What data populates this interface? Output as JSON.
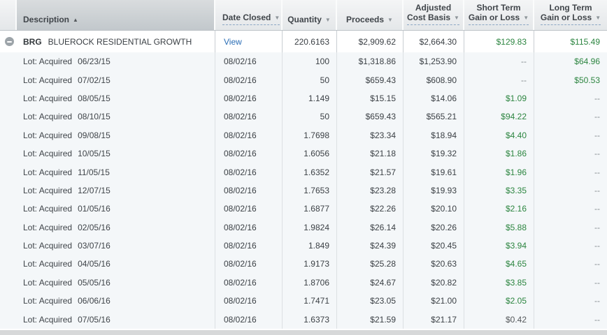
{
  "colors": {
    "gain_green": "#2c8540",
    "link_blue": "#2a6db5",
    "neutral_gray": "#55595c",
    "empty_dash_gray": "#868c91"
  },
  "table": {
    "columns": {
      "description": {
        "label": "Description",
        "sort_icon": "▲"
      },
      "date_closed": {
        "label": "Date Closed",
        "caret": "▼"
      },
      "quantity": {
        "label": "Quantity",
        "caret": "▼"
      },
      "proceeds": {
        "label": "Proceeds",
        "caret": "▼"
      },
      "adjusted_cost_basis": {
        "line1": "Adjusted",
        "line2": "Cost Basis",
        "caret": "▼"
      },
      "short_term": {
        "line1": "Short Term",
        "line2": "Gain or Loss",
        "caret": "▼"
      },
      "long_term": {
        "line1": "Long Term",
        "line2": "Gain or Loss",
        "caret": "▼"
      }
    },
    "summary": {
      "symbol": "BRG",
      "name": "BLUEROCK RESIDENTIAL GROWTH",
      "date_closed_link": "View",
      "quantity": "220.6163",
      "proceeds": "$2,909.62",
      "adjusted_cost_basis": "$2,664.30",
      "short_term": {
        "text": "$129.83",
        "tone": "gain"
      },
      "long_term": {
        "text": "$115.49",
        "tone": "gain"
      }
    },
    "lots": [
      {
        "label": "Lot: Acquired",
        "acquired": "06/23/15",
        "date_closed": "08/02/16",
        "quantity": "100",
        "proceeds": "$1,318.86",
        "adjusted_cost_basis": "$1,253.90",
        "short_term": {
          "text": "--",
          "tone": "empty"
        },
        "long_term": {
          "text": "$64.96",
          "tone": "gain"
        }
      },
      {
        "label": "Lot: Acquired",
        "acquired": "07/02/15",
        "date_closed": "08/02/16",
        "quantity": "50",
        "proceeds": "$659.43",
        "adjusted_cost_basis": "$608.90",
        "short_term": {
          "text": "--",
          "tone": "empty"
        },
        "long_term": {
          "text": "$50.53",
          "tone": "gain"
        }
      },
      {
        "label": "Lot: Acquired",
        "acquired": "08/05/15",
        "date_closed": "08/02/16",
        "quantity": "1.149",
        "proceeds": "$15.15",
        "adjusted_cost_basis": "$14.06",
        "short_term": {
          "text": "$1.09",
          "tone": "gain"
        },
        "long_term": {
          "text": "--",
          "tone": "empty"
        }
      },
      {
        "label": "Lot: Acquired",
        "acquired": "08/10/15",
        "date_closed": "08/02/16",
        "quantity": "50",
        "proceeds": "$659.43",
        "adjusted_cost_basis": "$565.21",
        "short_term": {
          "text": "$94.22",
          "tone": "gain"
        },
        "long_term": {
          "text": "--",
          "tone": "empty"
        }
      },
      {
        "label": "Lot: Acquired",
        "acquired": "09/08/15",
        "date_closed": "08/02/16",
        "quantity": "1.7698",
        "proceeds": "$23.34",
        "adjusted_cost_basis": "$18.94",
        "short_term": {
          "text": "$4.40",
          "tone": "gain"
        },
        "long_term": {
          "text": "--",
          "tone": "empty"
        }
      },
      {
        "label": "Lot: Acquired",
        "acquired": "10/05/15",
        "date_closed": "08/02/16",
        "quantity": "1.6056",
        "proceeds": "$21.18",
        "adjusted_cost_basis": "$19.32",
        "short_term": {
          "text": "$1.86",
          "tone": "gain"
        },
        "long_term": {
          "text": "--",
          "tone": "empty"
        }
      },
      {
        "label": "Lot: Acquired",
        "acquired": "11/05/15",
        "date_closed": "08/02/16",
        "quantity": "1.6352",
        "proceeds": "$21.57",
        "adjusted_cost_basis": "$19.61",
        "short_term": {
          "text": "$1.96",
          "tone": "gain"
        },
        "long_term": {
          "text": "--",
          "tone": "empty"
        }
      },
      {
        "label": "Lot: Acquired",
        "acquired": "12/07/15",
        "date_closed": "08/02/16",
        "quantity": "1.7653",
        "proceeds": "$23.28",
        "adjusted_cost_basis": "$19.93",
        "short_term": {
          "text": "$3.35",
          "tone": "gain"
        },
        "long_term": {
          "text": "--",
          "tone": "empty"
        }
      },
      {
        "label": "Lot: Acquired",
        "acquired": "01/05/16",
        "date_closed": "08/02/16",
        "quantity": "1.6877",
        "proceeds": "$22.26",
        "adjusted_cost_basis": "$20.10",
        "short_term": {
          "text": "$2.16",
          "tone": "gain"
        },
        "long_term": {
          "text": "--",
          "tone": "empty"
        }
      },
      {
        "label": "Lot: Acquired",
        "acquired": "02/05/16",
        "date_closed": "08/02/16",
        "quantity": "1.9824",
        "proceeds": "$26.14",
        "adjusted_cost_basis": "$20.26",
        "short_term": {
          "text": "$5.88",
          "tone": "gain"
        },
        "long_term": {
          "text": "--",
          "tone": "empty"
        }
      },
      {
        "label": "Lot: Acquired",
        "acquired": "03/07/16",
        "date_closed": "08/02/16",
        "quantity": "1.849",
        "proceeds": "$24.39",
        "adjusted_cost_basis": "$20.45",
        "short_term": {
          "text": "$3.94",
          "tone": "gain"
        },
        "long_term": {
          "text": "--",
          "tone": "empty"
        }
      },
      {
        "label": "Lot: Acquired",
        "acquired": "04/05/16",
        "date_closed": "08/02/16",
        "quantity": "1.9173",
        "proceeds": "$25.28",
        "adjusted_cost_basis": "$20.63",
        "short_term": {
          "text": "$4.65",
          "tone": "gain"
        },
        "long_term": {
          "text": "--",
          "tone": "empty"
        }
      },
      {
        "label": "Lot: Acquired",
        "acquired": "05/05/16",
        "date_closed": "08/02/16",
        "quantity": "1.8706",
        "proceeds": "$24.67",
        "adjusted_cost_basis": "$20.82",
        "short_term": {
          "text": "$3.85",
          "tone": "gain"
        },
        "long_term": {
          "text": "--",
          "tone": "empty"
        }
      },
      {
        "label": "Lot: Acquired",
        "acquired": "06/06/16",
        "date_closed": "08/02/16",
        "quantity": "1.7471",
        "proceeds": "$23.05",
        "adjusted_cost_basis": "$21.00",
        "short_term": {
          "text": "$2.05",
          "tone": "gain"
        },
        "long_term": {
          "text": "--",
          "tone": "empty"
        }
      },
      {
        "label": "Lot: Acquired",
        "acquired": "07/05/16",
        "date_closed": "08/02/16",
        "quantity": "1.6373",
        "proceeds": "$21.59",
        "adjusted_cost_basis": "$21.17",
        "short_term": {
          "text": "$0.42",
          "tone": "neutral"
        },
        "long_term": {
          "text": "--",
          "tone": "empty"
        }
      }
    ]
  }
}
